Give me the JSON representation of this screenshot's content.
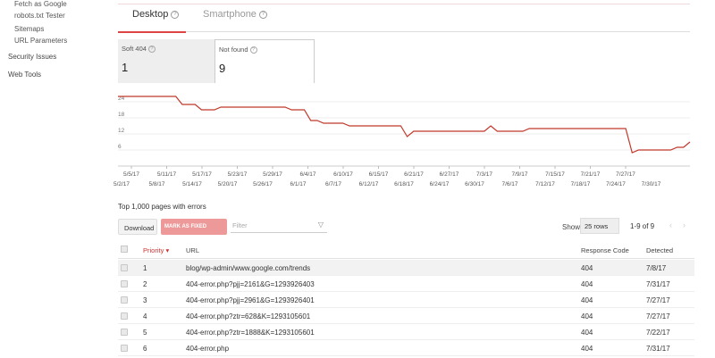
{
  "sidebar": {
    "sub_items": [
      "Fetch as Google",
      "robots.txt Tester",
      "Sitemaps",
      "URL Parameters"
    ],
    "top_items": [
      "Security Issues",
      "Web Tools"
    ]
  },
  "tabs": [
    {
      "label": "Desktop"
    },
    {
      "label": "Smartphone"
    }
  ],
  "summary": [
    {
      "label": "Soft 404",
      "value": "1"
    },
    {
      "label": "Not found",
      "value": "9"
    }
  ],
  "chart_data": {
    "type": "line",
    "color": "#c0392b",
    "yticks": [
      6,
      12,
      18,
      24
    ],
    "x_labels_row1": [
      "5/5/17",
      "5/11/17",
      "5/17/17",
      "5/23/17",
      "5/29/17",
      "6/4/17",
      "6/10/17",
      "6/15/17",
      "6/21/17",
      "6/27/17",
      "7/3/17",
      "7/9/17",
      "7/15/17",
      "7/21/17",
      "7/27/17"
    ],
    "x_labels_row2": [
      "5/2/17",
      "5/8/17",
      "5/14/17",
      "5/20/17",
      "5/26/17",
      "6/1/17",
      "6/7/17",
      "6/12/17",
      "6/18/17",
      "6/24/17",
      "6/30/17",
      "7/6/17",
      "7/12/17",
      "7/18/17",
      "7/24/17",
      "7/30/17"
    ],
    "values": [
      26,
      26,
      26,
      26,
      26,
      26,
      26,
      26,
      26,
      26,
      23,
      23,
      23,
      21,
      21,
      21,
      22,
      22,
      22,
      22,
      22,
      22,
      22,
      22,
      22,
      22,
      22,
      21,
      21,
      21,
      17,
      17,
      16,
      16,
      16,
      16,
      15,
      15,
      15,
      15,
      15,
      15,
      15,
      15,
      15,
      11,
      13,
      13,
      13,
      13,
      13,
      13,
      13,
      13,
      13,
      13,
      13,
      13,
      15,
      13,
      13,
      13,
      13,
      13,
      14,
      14,
      14,
      14,
      14,
      14,
      14,
      14,
      14,
      14,
      14,
      14,
      14,
      14,
      14,
      14,
      5,
      6,
      6,
      6,
      6,
      6,
      6,
      7,
      7,
      9
    ]
  },
  "table": {
    "title": "Top 1,000 pages with errors",
    "download_label": "Download",
    "mark_fixed_label": "MARK AS FIXED",
    "filter_placeholder": "Filter",
    "show_label": "Show",
    "rows_select": "25 rows",
    "page_range": "1-9 of 9",
    "prev_icon": "‹",
    "next_icon": "›",
    "columns": {
      "priority": "Priority",
      "url": "URL",
      "response": "Response Code",
      "detected": "Detected"
    },
    "rows": [
      {
        "priority": "1",
        "url": "blog/wp-admin/www.google.com/trends",
        "response": "404",
        "detected": "7/8/17"
      },
      {
        "priority": "2",
        "url": "404-error.php?pjj=2161&G=1293926403",
        "response": "404",
        "detected": "7/31/17"
      },
      {
        "priority": "3",
        "url": "404-error.php?pjj=2961&G=1293926401",
        "response": "404",
        "detected": "7/27/17"
      },
      {
        "priority": "4",
        "url": "404-error.php?ztr=628&K=1293105601",
        "response": "404",
        "detected": "7/27/17"
      },
      {
        "priority": "5",
        "url": "404-error.php?ztr=1888&K=1293105601",
        "response": "404",
        "detected": "7/22/17"
      },
      {
        "priority": "6",
        "url": "404-error.php",
        "response": "404",
        "detected": "7/31/17"
      }
    ]
  }
}
